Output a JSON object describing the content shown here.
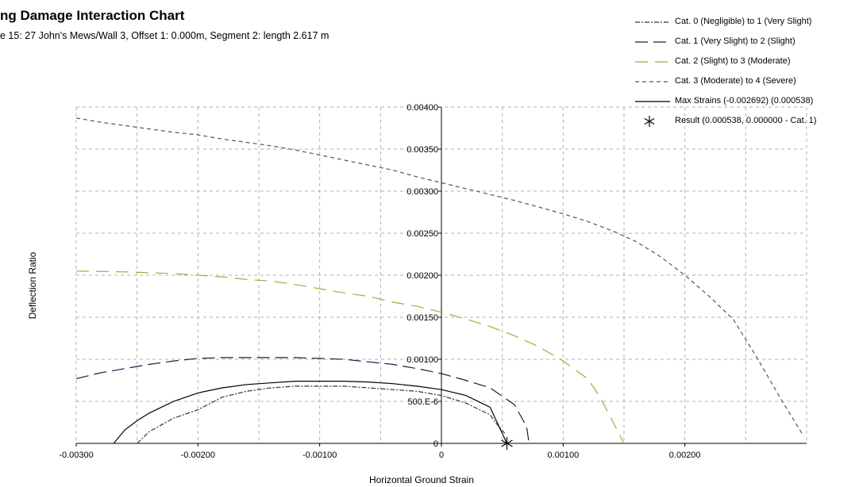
{
  "title": "ng Damage Interaction Chart",
  "subtitle": "e 15: 27 John's Mews/Wall 3, Offset 1: 0.000m, Segment 2: length 2.617 m",
  "chart_data": {
    "type": "line",
    "xlabel": "Horizontal Ground Strain",
    "ylabel": "Deflection Ratio",
    "xlim": [
      -0.003,
      0.003
    ],
    "ylim": [
      0,
      0.004
    ],
    "grid": true,
    "legend_position": "top-right",
    "x_ticks": [
      {
        "value": -0.003,
        "label": "-0.00300"
      },
      {
        "value": -0.002,
        "label": "-0.00200"
      },
      {
        "value": -0.001,
        "label": "-0.00100"
      },
      {
        "value": 0,
        "label": "0"
      },
      {
        "value": 0.001,
        "label": "0.00100"
      },
      {
        "value": 0.002,
        "label": "0.00200"
      }
    ],
    "y_ticks": [
      {
        "value": 0,
        "label": "0"
      },
      {
        "value": 0.0005,
        "label": "500.E-6"
      },
      {
        "value": 0.001,
        "label": "0.00100"
      },
      {
        "value": 0.0015,
        "label": "0.00150"
      },
      {
        "value": 0.002,
        "label": "0.00200"
      },
      {
        "value": 0.0025,
        "label": "0.00250"
      },
      {
        "value": 0.003,
        "label": "0.00300"
      },
      {
        "value": 0.0035,
        "label": "0.00350"
      },
      {
        "value": 0.004,
        "label": "0.00400"
      }
    ],
    "series": [
      {
        "name": "Cat. 0 (Negligible) to 1 (Very Slight)",
        "color": "#333333",
        "dash": "6,2,2,2",
        "x": [
          -0.0025,
          -0.0024,
          -0.0022,
          -0.002,
          -0.0018,
          -0.0016,
          -0.0014,
          -0.0012,
          -0.001,
          -0.0008,
          -0.0006,
          -0.0004,
          -0.0002,
          0,
          0.0002,
          0.0004,
          0.00045,
          0.00052
        ],
        "y": [
          0,
          0.00014,
          0.0003,
          0.0004,
          0.00055,
          0.00062,
          0.00066,
          0.00068,
          0.00068,
          0.00068,
          0.00066,
          0.00064,
          0.00062,
          0.00057,
          0.00048,
          0.00034,
          0.00024,
          0.00012
        ]
      },
      {
        "name": "Cat. 1 (Very Slight) to 2 (Slight)",
        "color": "#1a1a4a",
        "dash": "16,7",
        "x": [
          -0.003,
          -0.0028,
          -0.0026,
          -0.0024,
          -0.0022,
          -0.002,
          -0.0018,
          -0.0016,
          -0.0014,
          -0.0012,
          -0.001,
          -0.0008,
          -0.0006,
          -0.0004,
          -0.0002,
          0,
          0.0002,
          0.0004,
          0.0006,
          0.0007,
          0.00072
        ],
        "y": [
          0.00077,
          0.00084,
          0.00089,
          0.00094,
          0.00098,
          0.00101,
          0.00102,
          0.00102,
          0.00102,
          0.00102,
          0.00101,
          0.001,
          0.00097,
          0.00094,
          0.00089,
          0.00083,
          0.00075,
          0.00066,
          0.00046,
          0.0002,
          0
        ]
      },
      {
        "name": "Cat. 2 (Slight) to 3 (Moderate)",
        "color": "#a8a840",
        "dash": "16,9",
        "x": [
          -0.003,
          -0.0026,
          -0.0022,
          -0.002,
          -0.0018,
          -0.0016,
          -0.0014,
          -0.0012,
          -0.001,
          -0.0008,
          -0.0006,
          -0.0004,
          -0.0002,
          0,
          0.0002,
          0.0004,
          0.0006,
          0.0008,
          0.001,
          0.0012,
          0.0013,
          0.0014,
          0.0015
        ],
        "y": [
          0.00205,
          0.00204,
          0.00202,
          0.002,
          0.00198,
          0.00195,
          0.00193,
          0.00189,
          0.00184,
          0.00179,
          0.00175,
          0.00168,
          0.00163,
          0.00156,
          0.00148,
          0.00139,
          0.00128,
          0.00115,
          0.00098,
          0.00077,
          0.00056,
          0.00028,
          0
        ]
      },
      {
        "name": "Cat. 3 (Moderate) to 4 (Severe)",
        "color": "#555555",
        "dash": "5,4",
        "x": [
          -0.003,
          -0.0028,
          -0.0026,
          -0.0024,
          -0.0022,
          -0.002,
          -0.0018,
          -0.0016,
          -0.0014,
          -0.0012,
          -0.001,
          -0.0008,
          -0.0006,
          -0.0004,
          -0.0002,
          0,
          0.0002,
          0.0004,
          0.0006,
          0.0008,
          0.001,
          0.0012,
          0.0014,
          0.0016,
          0.0018,
          0.002,
          0.0022,
          0.0024,
          0.0026,
          0.0028,
          0.00297
        ],
        "y": [
          0.00387,
          0.00382,
          0.00378,
          0.00374,
          0.0037,
          0.00367,
          0.00362,
          0.00358,
          0.00354,
          0.00349,
          0.00343,
          0.00337,
          0.00331,
          0.00325,
          0.00317,
          0.0031,
          0.00303,
          0.00296,
          0.00289,
          0.00281,
          0.00273,
          0.00264,
          0.00253,
          0.0024,
          0.00222,
          0.002,
          0.00175,
          0.00147,
          0.001,
          0.0005,
          0.0001
        ]
      },
      {
        "name": "Max Strains (-0.002692) (0.000538)",
        "color": "#000000",
        "dash": "",
        "x": [
          -0.002692,
          -0.0026,
          -0.0025,
          -0.0024,
          -0.0022,
          -0.002,
          -0.0018,
          -0.0016,
          -0.0014,
          -0.0012,
          -0.001,
          -0.0008,
          -0.0006,
          -0.0004,
          -0.0002,
          0,
          0.0002,
          0.0004,
          0.000538
        ],
        "y": [
          0,
          0.00016,
          0.00027,
          0.00036,
          0.0005,
          0.0006,
          0.00066,
          0.0007,
          0.00072,
          0.00074,
          0.00074,
          0.00074,
          0.00073,
          0.00071,
          0.00068,
          0.00064,
          0.00057,
          0.00043,
          0
        ]
      }
    ],
    "result_point": {
      "name": "Result (0.000538, 0.000000 - Cat. 1)",
      "x": 0.000538,
      "y": 0
    }
  }
}
